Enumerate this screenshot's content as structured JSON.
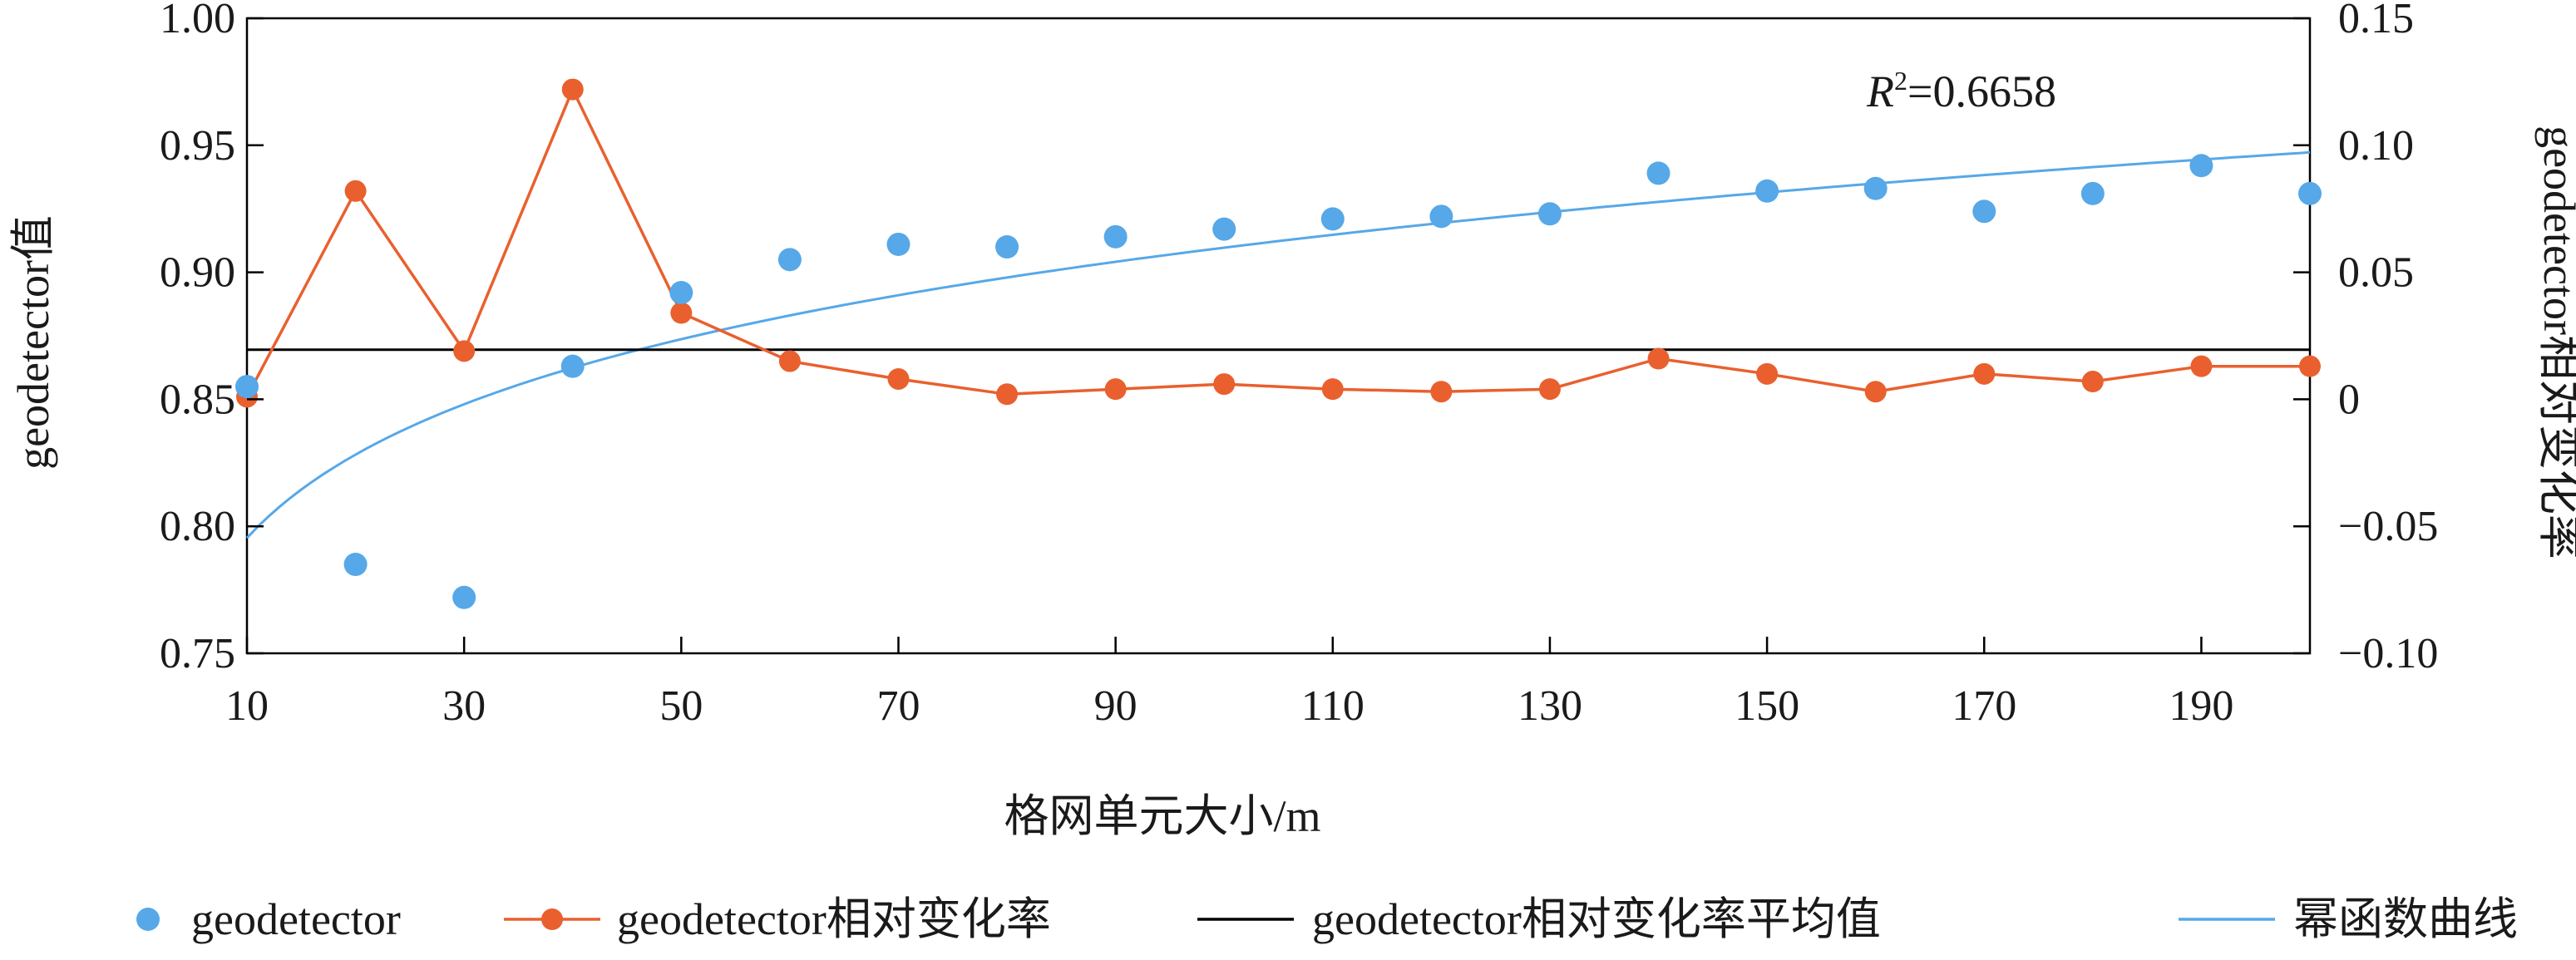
{
  "chart_data": {
    "type": "scatter+line",
    "xlabel": "格网单元大小/m",
    "ylabel_left": "geodetector值",
    "ylabel_right": "geodetector相对变化率",
    "annotation": {
      "prefix": "R",
      "sup": "2",
      "suffix": "=0.6658"
    },
    "x_ticks": [
      10,
      30,
      50,
      70,
      90,
      110,
      130,
      150,
      170,
      190
    ],
    "x_range": [
      10,
      200
    ],
    "y_left_ticks": [
      "0.75",
      "0.80",
      "0.85",
      "0.90",
      "0.95",
      "1.00"
    ],
    "y_left_range": [
      0.75,
      1.0
    ],
    "y_right_ticks": [
      "−0.10",
      "−0.05",
      "0",
      "0.05",
      "0.10",
      "0.15"
    ],
    "y_right_range": [
      -0.1,
      0.15
    ],
    "x": [
      10,
      20,
      30,
      40,
      50,
      60,
      70,
      80,
      90,
      100,
      110,
      120,
      130,
      140,
      150,
      160,
      170,
      180,
      190,
      200
    ],
    "series": [
      {
        "name": "geodetector",
        "axis": "left",
        "style": "points",
        "color": "#56a8e8",
        "values": [
          0.855,
          0.785,
          0.772,
          0.863,
          0.892,
          0.905,
          0.911,
          0.91,
          0.914,
          0.917,
          0.921,
          0.922,
          0.923,
          0.939,
          0.932,
          0.933,
          0.924,
          0.931,
          0.942,
          0.931
        ]
      },
      {
        "name": "geodetector相对变化率",
        "axis": "right",
        "style": "line+points",
        "color": "#e9602e",
        "values": [
          0.001,
          0.082,
          0.019,
          0.122,
          0.034,
          0.015,
          0.008,
          0.002,
          0.004,
          0.006,
          0.004,
          0.003,
          0.004,
          0.016,
          0.01,
          0.003,
          0.01,
          0.007,
          0.013,
          0.013
        ]
      },
      {
        "name": "geodetector相对变化率平均值",
        "axis": "right",
        "style": "hline",
        "color": "#000000",
        "value": 0.0195
      },
      {
        "name": "幂函数曲线",
        "axis": "left",
        "style": "curve",
        "color": "#56a8e8",
        "fit": {
          "a": 0.6955,
          "b": 0.0583
        }
      }
    ],
    "grid": false,
    "legend_position": "bottom"
  }
}
